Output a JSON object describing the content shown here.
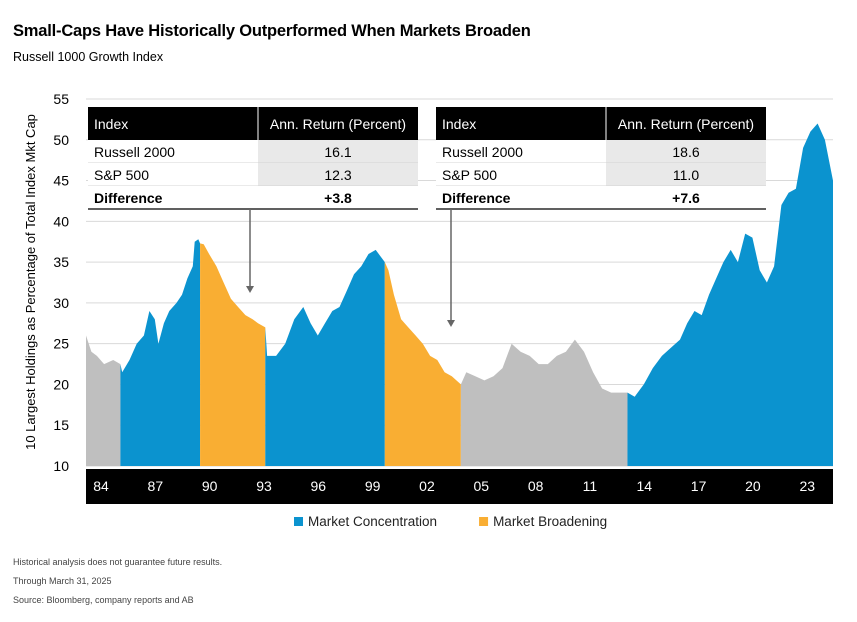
{
  "title": "Small-Caps Have Historically Outperformed When Markets Broaden",
  "subtitle": "Russell 1000 Growth Index",
  "footnotes": [
    "Historical analysis does not guarantee future results.",
    "Through March 31, 2025",
    "Source: Bloomberg, company reports and AB"
  ],
  "colors": {
    "concentration": "#0b93cf",
    "broadening": "#f9ae33",
    "neutral": "#bfbfbf",
    "axis_band": "#000000",
    "table_header": "#000000",
    "table_value_bg": "#e9e9e9"
  },
  "tables": [
    {
      "headers": [
        "Index",
        "Ann. Return (Percent)"
      ],
      "rows": [
        {
          "label": "Russell 2000",
          "value": "16.1",
          "bold": false
        },
        {
          "label": "S&P 500",
          "value": "12.3",
          "bold": false
        },
        {
          "label": "Difference",
          "value": "+3.8",
          "bold": true
        }
      ]
    },
    {
      "headers": [
        "Index",
        "Ann. Return (Percent)"
      ],
      "rows": [
        {
          "label": "Russell 2000",
          "value": "18.6",
          "bold": false
        },
        {
          "label": "S&P 500",
          "value": "11.0",
          "bold": false
        },
        {
          "label": "Difference",
          "value": "+7.6",
          "bold": true
        }
      ]
    }
  ],
  "chart_data": {
    "type": "area",
    "title": "Small-Caps Have Historically Outperformed When Markets Broaden",
    "subtitle": "Russell 1000 Growth Index",
    "ylabel": "10 Largest Holdings as Percentage of Total Index Mkt Cap",
    "xlabel": "",
    "ylim": [
      10,
      55
    ],
    "yticks": [
      10,
      15,
      20,
      25,
      30,
      35,
      40,
      45,
      50,
      55
    ],
    "xlim": [
      1984.0,
      2025.25
    ],
    "xtick_values": [
      1984,
      1987,
      1990,
      1993,
      1996,
      1999,
      2002,
      2005,
      2008,
      2011,
      2014,
      2017,
      2020,
      2023
    ],
    "xtick_labels": [
      "84",
      "87",
      "90",
      "93",
      "96",
      "99",
      "02",
      "05",
      "08",
      "11",
      "14",
      "17",
      "20",
      "23"
    ],
    "grid": "horizontal",
    "legend": [
      {
        "name": "Market Concentration",
        "color": "#0b93cf"
      },
      {
        "name": "Market Broadening",
        "color": "#f9ae33"
      }
    ],
    "legend_position": "bottom-center",
    "series": [
      {
        "name": "",
        "values": [
          [
            1984.0,
            26.0
          ],
          [
            1984.3,
            24.0
          ],
          [
            1984.6,
            23.5
          ],
          [
            1985.0,
            22.5
          ],
          [
            1985.5,
            23.0
          ],
          [
            1985.9,
            22.5
          ],
          [
            1986.0,
            21.5
          ],
          [
            1986.4,
            23.0
          ],
          [
            1986.8,
            25.0
          ],
          [
            1987.2,
            26.0
          ],
          [
            1987.5,
            29.0
          ],
          [
            1987.8,
            28.0
          ],
          [
            1988.0,
            25.0
          ],
          [
            1988.3,
            27.5
          ],
          [
            1988.6,
            29.0
          ],
          [
            1989.0,
            30.0
          ],
          [
            1989.3,
            31.0
          ],
          [
            1989.6,
            33.0
          ],
          [
            1989.9,
            34.5
          ],
          [
            1990.0,
            37.5
          ],
          [
            1990.2,
            37.8
          ],
          [
            1990.3,
            37.3
          ],
          [
            1990.5,
            37.2
          ],
          [
            1990.8,
            36.0
          ],
          [
            1991.2,
            34.5
          ],
          [
            1991.6,
            32.5
          ],
          [
            1992.0,
            30.5
          ],
          [
            1992.4,
            29.5
          ],
          [
            1992.8,
            28.5
          ],
          [
            1993.2,
            28.0
          ],
          [
            1993.5,
            27.5
          ],
          [
            1993.9,
            27.0
          ],
          [
            1994.0,
            23.5
          ],
          [
            1994.5,
            23.5
          ],
          [
            1995.0,
            25.0
          ],
          [
            1995.5,
            28.0
          ],
          [
            1996.0,
            29.5
          ],
          [
            1996.4,
            27.5
          ],
          [
            1996.8,
            26.0
          ],
          [
            1997.2,
            27.5
          ],
          [
            1997.6,
            29.0
          ],
          [
            1998.0,
            29.5
          ],
          [
            1998.4,
            31.5
          ],
          [
            1998.8,
            33.5
          ],
          [
            1999.2,
            34.5
          ],
          [
            1999.6,
            36.0
          ],
          [
            2000.0,
            36.5
          ],
          [
            2000.5,
            35.0
          ],
          [
            2000.7,
            34.0
          ],
          [
            2001.0,
            31.0
          ],
          [
            2001.4,
            28.0
          ],
          [
            2001.8,
            27.0
          ],
          [
            2002.2,
            26.0
          ],
          [
            2002.6,
            25.0
          ],
          [
            2003.0,
            23.5
          ],
          [
            2003.4,
            23.0
          ],
          [
            2003.8,
            21.5
          ],
          [
            2004.2,
            21.0
          ],
          [
            2004.7,
            20.0
          ],
          [
            2005.0,
            21.5
          ],
          [
            2005.5,
            21.0
          ],
          [
            2006.0,
            20.5
          ],
          [
            2006.5,
            21.0
          ],
          [
            2007.0,
            22.0
          ],
          [
            2007.5,
            25.0
          ],
          [
            2008.0,
            24.0
          ],
          [
            2008.5,
            23.5
          ],
          [
            2009.0,
            22.5
          ],
          [
            2009.5,
            22.5
          ],
          [
            2010.0,
            23.5
          ],
          [
            2010.5,
            24.0
          ],
          [
            2011.0,
            25.5
          ],
          [
            2011.5,
            24.0
          ],
          [
            2012.0,
            21.5
          ],
          [
            2012.5,
            19.5
          ],
          [
            2013.0,
            19.0
          ],
          [
            2013.5,
            19.0
          ],
          [
            2013.9,
            19.0
          ],
          [
            2014.3,
            18.5
          ],
          [
            2014.8,
            20.0
          ],
          [
            2015.3,
            22.0
          ],
          [
            2015.8,
            23.5
          ],
          [
            2016.3,
            24.5
          ],
          [
            2016.8,
            25.5
          ],
          [
            2017.2,
            27.5
          ],
          [
            2017.6,
            29.0
          ],
          [
            2018.0,
            28.5
          ],
          [
            2018.4,
            31.0
          ],
          [
            2018.8,
            33.0
          ],
          [
            2019.2,
            35.0
          ],
          [
            2019.6,
            36.5
          ],
          [
            2020.0,
            35.0
          ],
          [
            2020.4,
            38.5
          ],
          [
            2020.8,
            38.0
          ],
          [
            2021.2,
            34.0
          ],
          [
            2021.6,
            32.5
          ],
          [
            2022.0,
            34.5
          ],
          [
            2022.4,
            42.0
          ],
          [
            2022.8,
            43.5
          ],
          [
            2023.2,
            44.0
          ],
          [
            2023.6,
            49.0
          ],
          [
            2024.0,
            51.0
          ],
          [
            2024.4,
            52.0
          ],
          [
            2024.8,
            50.0
          ],
          [
            2025.25,
            45.0
          ]
        ]
      }
    ],
    "regions": [
      {
        "from": 1984.0,
        "to": 1985.9,
        "kind": "neutral"
      },
      {
        "from": 1985.9,
        "to": 1990.3,
        "kind": "concentration"
      },
      {
        "from": 1990.3,
        "to": 1993.9,
        "kind": "broadening"
      },
      {
        "from": 1993.9,
        "to": 2000.5,
        "kind": "concentration"
      },
      {
        "from": 2000.5,
        "to": 2004.7,
        "kind": "broadening"
      },
      {
        "from": 2004.7,
        "to": 2013.9,
        "kind": "neutral"
      },
      {
        "from": 2013.9,
        "to": 2025.25,
        "kind": "concentration"
      }
    ]
  }
}
